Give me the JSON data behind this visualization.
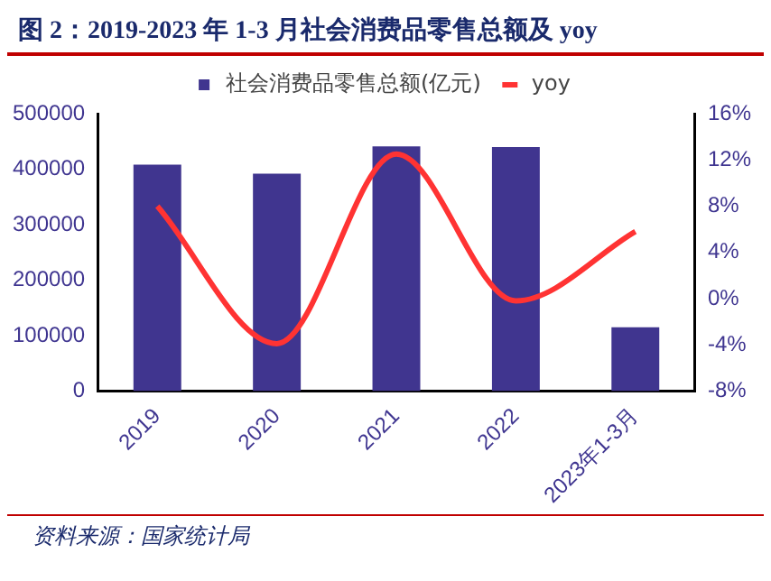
{
  "chart_data": {
    "type": "bar",
    "title": "图 2：2019-2023 年 1-3 月社会消费品零售总额及 yoy",
    "categories": [
      "2019",
      "2020",
      "2021",
      "2022",
      "2023年1-3月"
    ],
    "series": [
      {
        "name": "社会消费品零售总额(亿元)",
        "color": "#40358f",
        "values": [
          408000,
          392000,
          441000,
          440000,
          115000
        ]
      },
      {
        "name": "yoy",
        "type": "line",
        "axis": "y2",
        "color": "#ff3333",
        "values": [
          8.0,
          -3.9,
          12.5,
          -0.2,
          5.8
        ]
      }
    ],
    "ylim": [
      0,
      500000
    ],
    "yticks": [
      0,
      100000,
      200000,
      300000,
      400000,
      500000
    ],
    "y2lim": [
      -8,
      16
    ],
    "y2ticks": [
      {
        "value": -8,
        "label": "-8%"
      },
      {
        "value": -4,
        "label": "-4%"
      },
      {
        "value": 0,
        "label": "0%"
      },
      {
        "value": 4,
        "label": "4%"
      },
      {
        "value": 8,
        "label": "8%"
      },
      {
        "value": 12,
        "label": "12%"
      },
      {
        "value": 16,
        "label": "16%"
      }
    ],
    "grid": false,
    "legend": "top",
    "marker": "none",
    "annotations": [
      "资料来源：国家统计局"
    ]
  }
}
